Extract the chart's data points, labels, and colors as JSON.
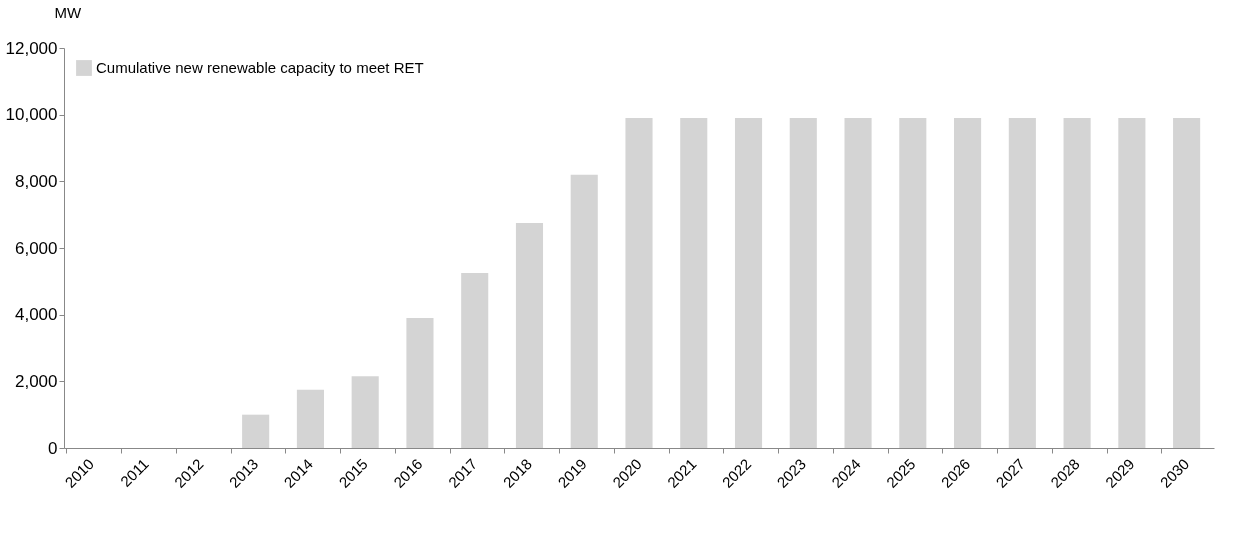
{
  "chart_data": {
    "type": "bar",
    "ylabel": "MW",
    "categories": [
      "2010",
      "2011",
      "2012",
      "2013",
      "2014",
      "2015",
      "2016",
      "2017",
      "2018",
      "2019",
      "2020",
      "2021",
      "2022",
      "2023",
      "2024",
      "2025",
      "2026",
      "2027",
      "2028",
      "2029",
      "2030"
    ],
    "series": [
      {
        "name": "Cumulative new renewable capacity to meet RET",
        "color": "#d4d4d4",
        "values": [
          0,
          0,
          0,
          1000,
          1750,
          2150,
          3900,
          5250,
          6750,
          8200,
          9900,
          9900,
          9900,
          9900,
          9900,
          9900,
          9900,
          9900,
          9900,
          9900,
          9900
        ]
      }
    ],
    "ylim": [
      0,
      12000
    ],
    "yticks": [
      0,
      {
        "value": 2000,
        "label": "2,000"
      },
      {
        "value": 4000,
        "label": "4,000"
      },
      {
        "value": 6000,
        "label": "6,000"
      },
      {
        "value": 8000,
        "label": "8,000"
      },
      {
        "value": 10000,
        "label": "10,000"
      },
      {
        "value": 12000,
        "label": "12,000"
      }
    ],
    "grid": false,
    "legend": "top left"
  }
}
